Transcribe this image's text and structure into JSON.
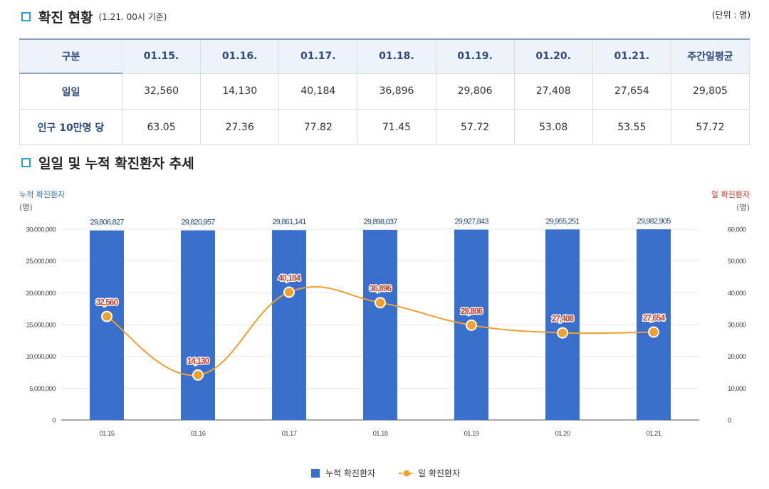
{
  "section1": {
    "title": "확진 현황",
    "subtitle": "(1.21. 00시 기준)",
    "unit": "(단위 : 명)"
  },
  "table": {
    "headers": [
      "구분",
      "01.15.",
      "01.16.",
      "01.17.",
      "01.18.",
      "01.19.",
      "01.20.",
      "01.21.",
      "주간일평균"
    ],
    "rows": [
      {
        "label": "일일",
        "cells": [
          "32,560",
          "14,130",
          "40,184",
          "36,896",
          "29,806",
          "27,408",
          "27,654",
          "29,805"
        ]
      },
      {
        "label": "인구 10만명 당",
        "cells": [
          "63.05",
          "27.36",
          "77.82",
          "71.45",
          "57.72",
          "53.08",
          "53.55",
          "57.72"
        ]
      }
    ]
  },
  "section2": {
    "title": "일일 및 누적 확진환자 추세"
  },
  "colors": {
    "bar": "#3a6fcb",
    "line": "#f0a030",
    "left_axis_label": "#3a6fa8",
    "right_axis_label": "#c0392b",
    "section_icon": "#2a9fd6"
  },
  "chart_data": {
    "type": "bar+line",
    "categories": [
      "01.15",
      "01.16",
      "01.17",
      "01.18",
      "01.19",
      "01.20",
      "01.21"
    ],
    "series": [
      {
        "name": "누적 확진환자",
        "type": "bar",
        "axis": "left",
        "values": [
          29806827,
          29820957,
          29861141,
          29898037,
          29927843,
          29955251,
          29982905
        ],
        "labels": [
          "29,806,827",
          "29,820,957",
          "29,861,141",
          "29,898,037",
          "29,927,843",
          "29,955,251",
          "29,982,905"
        ]
      },
      {
        "name": "일 확진환자",
        "type": "line",
        "axis": "right",
        "values": [
          32560,
          14130,
          40184,
          36896,
          29806,
          27408,
          27654
        ],
        "labels": [
          "32,560",
          "14,130",
          "40,184",
          "36,896",
          "29,806",
          "27,408",
          "27,654"
        ]
      }
    ],
    "left_axis": {
      "label": "누적 확진환자",
      "unit": "(명)",
      "range": [
        0,
        30000000
      ],
      "ticks": [
        0,
        5000000,
        10000000,
        15000000,
        20000000,
        25000000,
        30000000
      ],
      "tick_labels": [
        "0",
        "5,000,000",
        "10,000,000",
        "15,000,000",
        "20,000,000",
        "25,000,000",
        "30,000,000"
      ]
    },
    "right_axis": {
      "label": "일 확진환자",
      "unit": "(명)",
      "range": [
        0,
        60000
      ],
      "ticks": [
        0,
        10000,
        20000,
        30000,
        40000,
        50000,
        60000
      ],
      "tick_labels": [
        "0",
        "10,000",
        "20,000",
        "30,000",
        "40,000",
        "50,000",
        "60,000"
      ]
    },
    "legend": {
      "position": "bottom",
      "items": [
        "누적 확진환자",
        "일 확진환자"
      ]
    }
  }
}
